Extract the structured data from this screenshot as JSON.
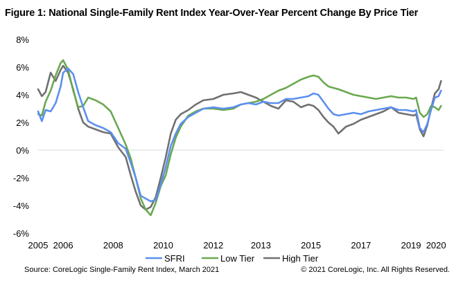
{
  "chart_data": {
    "type": "line",
    "title": "Figure 1: National Single-Family Rent Index Year-Over-Year Percent Change By Price Tier",
    "xlabel": "",
    "ylabel": "",
    "xlim": [
      2005.0,
      2021.2
    ],
    "ylim": [
      -6,
      8
    ],
    "yticks": [
      -6,
      -4,
      -2,
      0,
      2,
      4,
      6,
      8
    ],
    "ytick_labels": [
      "-6%",
      "-4%",
      "-2%",
      "0%",
      "2%",
      "4%",
      "6%",
      "8%"
    ],
    "xticks": [
      2005,
      2006,
      2008,
      2010,
      2012,
      2013,
      2015,
      2017,
      2019,
      2020
    ],
    "xtick_labels": [
      "2005",
      "2006",
      "2008",
      "2010",
      "2012",
      "2013",
      "2015",
      "2017",
      "2019",
      "2020"
    ],
    "xtick_positions": [
      2005.0,
      2006.0,
      2008.0,
      2010.0,
      2012.0,
      2013.9,
      2015.9,
      2017.9,
      2019.9,
      2020.9
    ],
    "legend_position": "bottom",
    "series": [
      {
        "name": "SFRI",
        "color": "#5b8ff0",
        "x": [
          2005.0,
          2005.15,
          2005.3,
          2005.5,
          2005.7,
          2005.9,
          2006.0,
          2006.2,
          2006.4,
          2006.6,
          2006.8,
          2007.0,
          2007.3,
          2007.6,
          2007.9,
          2008.2,
          2008.5,
          2008.7,
          2008.9,
          2009.1,
          2009.3,
          2009.5,
          2009.7,
          2009.9,
          2010.1,
          2010.3,
          2010.5,
          2010.7,
          2011.0,
          2011.3,
          2011.6,
          2012.0,
          2012.4,
          2012.8,
          2013.1,
          2013.4,
          2013.7,
          2014.0,
          2014.3,
          2014.6,
          2014.9,
          2015.2,
          2015.5,
          2015.8,
          2016.0,
          2016.2,
          2016.4,
          2016.6,
          2016.8,
          2017.0,
          2017.3,
          2017.6,
          2017.9,
          2018.2,
          2018.5,
          2018.8,
          2019.1,
          2019.4,
          2019.7,
          2020.0,
          2020.1,
          2020.25,
          2020.4,
          2020.55,
          2020.7,
          2020.85,
          2021.0,
          2021.1
        ],
        "values": [
          2.8,
          2.1,
          2.9,
          2.8,
          3.4,
          4.6,
          5.6,
          5.9,
          5.5,
          4.2,
          3.1,
          2.1,
          1.8,
          1.6,
          1.3,
          0.5,
          0.1,
          -0.9,
          -2.0,
          -3.3,
          -3.5,
          -3.7,
          -3.6,
          -2.5,
          -1.2,
          0.3,
          1.2,
          1.9,
          2.4,
          2.7,
          3.0,
          3.1,
          3.0,
          3.1,
          3.3,
          3.4,
          3.3,
          3.5,
          3.4,
          3.4,
          3.7,
          3.7,
          3.8,
          3.9,
          4.1,
          4.0,
          3.5,
          3.0,
          2.6,
          2.5,
          2.6,
          2.7,
          2.6,
          2.8,
          2.9,
          3.0,
          3.1,
          2.9,
          2.9,
          2.8,
          2.9,
          1.6,
          1.3,
          1.9,
          2.9,
          3.8,
          3.9,
          4.3
        ]
      },
      {
        "name": "Low Tier",
        "color": "#6aa84f",
        "x": [
          2005.0,
          2005.15,
          2005.3,
          2005.5,
          2005.7,
          2005.9,
          2006.0,
          2006.2,
          2006.4,
          2006.6,
          2006.8,
          2007.0,
          2007.3,
          2007.6,
          2007.9,
          2008.2,
          2008.5,
          2008.7,
          2008.9,
          2009.1,
          2009.3,
          2009.5,
          2009.7,
          2009.9,
          2010.1,
          2010.3,
          2010.5,
          2010.7,
          2011.0,
          2011.3,
          2011.6,
          2012.0,
          2012.4,
          2012.8,
          2013.1,
          2013.4,
          2013.7,
          2014.0,
          2014.3,
          2014.6,
          2014.9,
          2015.2,
          2015.5,
          2015.8,
          2016.0,
          2016.2,
          2016.4,
          2016.6,
          2016.8,
          2017.0,
          2017.3,
          2017.6,
          2017.9,
          2018.2,
          2018.5,
          2018.8,
          2019.1,
          2019.4,
          2019.7,
          2020.0,
          2020.1,
          2020.25,
          2020.4,
          2020.55,
          2020.7,
          2020.85,
          2021.0,
          2021.1
        ],
        "values": [
          2.6,
          2.5,
          3.5,
          4.3,
          5.4,
          6.3,
          6.5,
          5.8,
          4.3,
          3.1,
          3.2,
          3.8,
          3.6,
          3.3,
          2.8,
          1.6,
          0.4,
          -0.6,
          -2.0,
          -3.5,
          -4.3,
          -4.7,
          -3.8,
          -2.6,
          -1.8,
          -0.3,
          0.9,
          1.7,
          2.5,
          2.8,
          3.0,
          3.0,
          2.9,
          3.0,
          3.3,
          3.4,
          3.5,
          3.7,
          4.0,
          4.3,
          4.5,
          4.8,
          5.1,
          5.3,
          5.4,
          5.3,
          4.9,
          4.6,
          4.5,
          4.4,
          4.2,
          4.0,
          3.9,
          3.8,
          3.7,
          3.8,
          3.9,
          3.8,
          3.8,
          3.7,
          3.8,
          2.7,
          2.4,
          2.6,
          3.2,
          3.1,
          2.9,
          3.2
        ]
      },
      {
        "name": "High Tier",
        "color": "#707070",
        "x": [
          2005.0,
          2005.15,
          2005.3,
          2005.5,
          2005.7,
          2005.9,
          2006.0,
          2006.2,
          2006.4,
          2006.6,
          2006.8,
          2007.0,
          2007.3,
          2007.6,
          2007.9,
          2008.2,
          2008.5,
          2008.7,
          2008.9,
          2009.1,
          2009.3,
          2009.5,
          2009.7,
          2009.9,
          2010.1,
          2010.3,
          2010.5,
          2010.7,
          2011.0,
          2011.3,
          2011.6,
          2012.0,
          2012.4,
          2012.8,
          2013.1,
          2013.4,
          2013.7,
          2014.0,
          2014.3,
          2014.6,
          2014.9,
          2015.2,
          2015.5,
          2015.8,
          2016.0,
          2016.2,
          2016.4,
          2016.6,
          2016.8,
          2017.0,
          2017.3,
          2017.6,
          2017.9,
          2018.2,
          2018.5,
          2018.8,
          2019.1,
          2019.4,
          2019.7,
          2020.0,
          2020.1,
          2020.25,
          2020.4,
          2020.55,
          2020.7,
          2020.85,
          2021.0,
          2021.1
        ],
        "values": [
          4.4,
          3.9,
          4.2,
          5.6,
          5.0,
          5.8,
          6.1,
          5.6,
          4.4,
          3.0,
          2.0,
          1.7,
          1.5,
          1.3,
          1.2,
          0.2,
          -0.5,
          -1.8,
          -3.0,
          -4.0,
          -4.3,
          -4.1,
          -3.4,
          -2.0,
          -0.5,
          1.2,
          2.2,
          2.6,
          2.9,
          3.3,
          3.6,
          3.7,
          4.0,
          4.1,
          4.2,
          4.0,
          3.8,
          3.5,
          3.2,
          3.0,
          3.6,
          3.5,
          3.1,
          3.3,
          3.2,
          2.9,
          2.4,
          2.0,
          1.7,
          1.2,
          1.7,
          1.9,
          2.2,
          2.4,
          2.6,
          2.8,
          3.1,
          2.7,
          2.6,
          2.5,
          2.6,
          1.5,
          1.0,
          1.8,
          3.0,
          4.1,
          4.4,
          5.0
        ]
      }
    ]
  },
  "footer": {
    "source": "Source:  CoreLogic  Single-Family  Rent  Index,  March  2021",
    "copyright": "© 2021  CoreLogic,  Inc. All Rights Reserved."
  }
}
